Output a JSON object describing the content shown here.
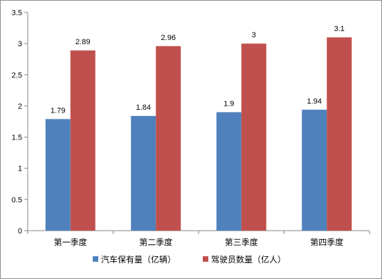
{
  "chart_data": {
    "type": "bar",
    "categories": [
      "第一季度",
      "第二季度",
      "第三季度",
      "第四季度"
    ],
    "series": [
      {
        "name": "汽车保有量（亿辆）",
        "values": [
          1.79,
          1.84,
          1.9,
          1.94
        ],
        "labels": [
          "1.79",
          "1.84",
          "1.9",
          "1.94"
        ],
        "color": "#4f81bd"
      },
      {
        "name": "驾驶员数量（亿人）",
        "values": [
          2.89,
          2.96,
          3,
          3.1
        ],
        "labels": [
          "2.89",
          "2.96",
          "3",
          "3.1"
        ],
        "color": "#c0504d"
      }
    ],
    "yticks": [
      "0",
      "0.5",
      "1",
      "1.5",
      "2",
      "2.5",
      "3",
      "3.5"
    ],
    "ylim": [
      0,
      3.5
    ],
    "grid": false,
    "legend_position": "bottom"
  }
}
